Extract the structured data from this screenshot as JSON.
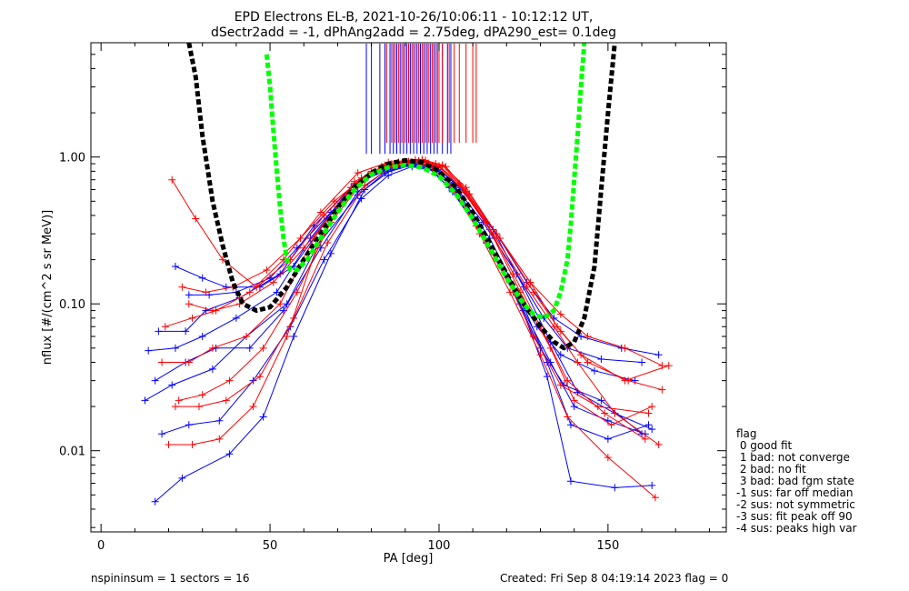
{
  "chart_data": {
    "type": "line",
    "title_line1": "EPD Electrons EL-B, 2021-10-26/10:06:11 - 10:12:12 UT,",
    "title_line2": "dSectr2add = -1, dPhAng2add = 2.75deg, dPA290_est=   0.1deg",
    "xlabel": "PA [deg]",
    "ylabel": "nflux [#/(cm^2 s sr MeV)]",
    "xlim": [
      -3,
      185
    ],
    "ylim": [
      0.0028,
      6.0
    ],
    "log_y": true,
    "x_ticks": [
      0,
      50,
      100,
      150
    ],
    "x_tick_labels": [
      "0",
      "50",
      "100",
      "150"
    ],
    "y_ticks": [
      0.01,
      0.1,
      1.0
    ],
    "y_tick_labels": [
      "0.01",
      "0.10",
      "1.00"
    ],
    "legend_title": "flag",
    "legend_entries": [
      " 0 good fit",
      " 1 bad: not converge",
      " 2 bad: no fit",
      " 3 bad: bad fgm state",
      "-1 sus: far off median",
      "-2 sus: not symmetric",
      "-3 sus: fit peak off 90",
      "-4 sus: peaks high var"
    ],
    "footer_left": "nspininsum =  1  sectors = 16",
    "footer_right": "Created: Fri Sep  8 04:19:14 2023   flag = 0",
    "colors": {
      "series_a": "#0000ff",
      "series_b": "#ff0000",
      "fit_black": "#000000",
      "fit_green": "#00ff00"
    },
    "series": [
      {
        "color": "series_a",
        "x": [
          16,
          24,
          38,
          48,
          57,
          68,
          78,
          86,
          93,
          99,
          105,
          114,
          124,
          132,
          139,
          152,
          163
        ],
        "y": [
          0.0045,
          0.0065,
          0.0095,
          0.017,
          0.06,
          0.22,
          0.6,
          0.82,
          0.9,
          0.85,
          0.6,
          0.26,
          0.1,
          0.032,
          0.0062,
          0.0056,
          0.0058
        ]
      },
      {
        "color": "series_a",
        "x": [
          13,
          21,
          33,
          43,
          55,
          64,
          76,
          84,
          92,
          98,
          104,
          113,
          122,
          130,
          137,
          148,
          160
        ],
        "y": [
          0.022,
          0.028,
          0.036,
          0.06,
          0.1,
          0.25,
          0.55,
          0.78,
          0.88,
          0.82,
          0.58,
          0.29,
          0.12,
          0.05,
          0.028,
          0.022,
          0.013
        ]
      },
      {
        "color": "series_a",
        "x": [
          14,
          22,
          30,
          40,
          52,
          62,
          74,
          83,
          91,
          97,
          103,
          112,
          121,
          129,
          136,
          146,
          158
        ],
        "y": [
          0.048,
          0.05,
          0.06,
          0.08,
          0.12,
          0.28,
          0.62,
          0.8,
          0.9,
          0.84,
          0.62,
          0.33,
          0.14,
          0.07,
          0.045,
          0.035,
          0.03
        ]
      },
      {
        "color": "series_a",
        "x": [
          18,
          26,
          35,
          45,
          56,
          66,
          77,
          85,
          92,
          99,
          106,
          115,
          125,
          133,
          140,
          150,
          161
        ],
        "y": [
          0.013,
          0.015,
          0.016,
          0.03,
          0.07,
          0.2,
          0.52,
          0.75,
          0.86,
          0.8,
          0.55,
          0.24,
          0.09,
          0.04,
          0.02,
          0.016,
          0.013
        ]
      },
      {
        "color": "series_a",
        "x": [
          17,
          25,
          31,
          41,
          53,
          63,
          75,
          84,
          92,
          98,
          104,
          113,
          123,
          131,
          138,
          148,
          160
        ],
        "y": [
          0.065,
          0.065,
          0.09,
          0.11,
          0.16,
          0.34,
          0.66,
          0.82,
          0.92,
          0.86,
          0.66,
          0.36,
          0.16,
          0.08,
          0.05,
          0.042,
          0.04
        ]
      },
      {
        "color": "series_a",
        "x": [
          26,
          32,
          40,
          50,
          58,
          68,
          78,
          86,
          94,
          100,
          108,
          117,
          126,
          134,
          142,
          154,
          165
        ],
        "y": [
          0.115,
          0.115,
          0.12,
          0.15,
          0.24,
          0.42,
          0.7,
          0.84,
          0.9,
          0.82,
          0.58,
          0.3,
          0.14,
          0.08,
          0.06,
          0.05,
          0.045
        ]
      },
      {
        "color": "series_a",
        "x": [
          16,
          25,
          34,
          44,
          54,
          65,
          76,
          84,
          92,
          99,
          105,
          115,
          124,
          132,
          139,
          150,
          162
        ],
        "y": [
          0.03,
          0.04,
          0.05,
          0.05,
          0.09,
          0.24,
          0.58,
          0.8,
          0.9,
          0.84,
          0.6,
          0.28,
          0.11,
          0.04,
          0.015,
          0.012,
          0.015
        ]
      },
      {
        "color": "series_a",
        "x": [
          22,
          30,
          37,
          47,
          57,
          67,
          77,
          85,
          93,
          99,
          106,
          116,
          125,
          133,
          141,
          152,
          163
        ],
        "y": [
          0.18,
          0.15,
          0.13,
          0.13,
          0.18,
          0.38,
          0.68,
          0.84,
          0.93,
          0.86,
          0.62,
          0.32,
          0.13,
          0.055,
          0.025,
          0.018,
          0.014
        ]
      },
      {
        "color": "series_b",
        "x": [
          20,
          27,
          35,
          45,
          55,
          64,
          75,
          84,
          92,
          98,
          104,
          112,
          121,
          130,
          138,
          150,
          164
        ],
        "y": [
          0.011,
          0.011,
          0.012,
          0.02,
          0.06,
          0.25,
          0.68,
          0.88,
          0.92,
          0.85,
          0.62,
          0.3,
          0.12,
          0.045,
          0.017,
          0.009,
          0.0048
        ]
      },
      {
        "color": "series_b",
        "x": [
          21,
          28,
          36,
          46,
          56,
          66,
          77,
          86,
          94,
          100,
          107,
          116,
          126,
          134,
          141,
          152,
          165
        ],
        "y": [
          0.7,
          0.38,
          0.2,
          0.13,
          0.2,
          0.4,
          0.72,
          0.9,
          0.94,
          0.86,
          0.6,
          0.3,
          0.13,
          0.07,
          0.04,
          0.018,
          0.011
        ]
      },
      {
        "color": "series_b",
        "x": [
          18,
          26,
          33,
          43,
          53,
          63,
          74,
          83,
          91,
          97,
          103,
          111,
          120,
          128,
          136,
          147,
          162
        ],
        "y": [
          0.04,
          0.04,
          0.05,
          0.06,
          0.1,
          0.28,
          0.62,
          0.86,
          0.93,
          0.88,
          0.66,
          0.34,
          0.15,
          0.06,
          0.028,
          0.02,
          0.018
        ]
      },
      {
        "color": "series_b",
        "x": [
          23,
          30,
          38,
          48,
          58,
          68,
          79,
          87,
          95,
          101,
          108,
          117,
          127,
          135,
          142,
          155,
          168
        ],
        "y": [
          0.022,
          0.024,
          0.03,
          0.05,
          0.12,
          0.36,
          0.75,
          0.9,
          0.95,
          0.88,
          0.62,
          0.3,
          0.14,
          0.07,
          0.045,
          0.03,
          0.038
        ]
      },
      {
        "color": "series_b",
        "x": [
          19,
          27,
          34,
          44,
          54,
          65,
          76,
          85,
          93,
          99,
          106,
          115,
          124,
          133,
          140,
          151,
          163
        ],
        "y": [
          0.07,
          0.08,
          0.09,
          0.12,
          0.2,
          0.42,
          0.78,
          0.92,
          0.96,
          0.9,
          0.64,
          0.32,
          0.12,
          0.05,
          0.022,
          0.015,
          0.02
        ]
      },
      {
        "color": "series_b",
        "x": [
          24,
          31,
          39,
          49,
          59,
          69,
          80,
          88,
          95,
          101,
          108,
          118,
          128,
          136,
          144,
          156,
          166
        ],
        "y": [
          0.13,
          0.12,
          0.13,
          0.17,
          0.28,
          0.5,
          0.8,
          0.92,
          0.96,
          0.88,
          0.58,
          0.28,
          0.12,
          0.065,
          0.04,
          0.03,
          0.026
        ]
      },
      {
        "color": "series_b",
        "x": [
          22,
          29,
          37,
          47,
          57,
          67,
          78,
          86,
          94,
          100,
          106,
          114,
          122,
          130,
          138,
          149,
          161
        ],
        "y": [
          0.02,
          0.02,
          0.022,
          0.032,
          0.08,
          0.26,
          0.64,
          0.86,
          0.94,
          0.87,
          0.66,
          0.36,
          0.16,
          0.07,
          0.03,
          0.018,
          0.012
        ]
      },
      {
        "color": "series_b",
        "x": [
          26,
          33,
          41,
          51,
          60,
          70,
          80,
          88,
          96,
          102,
          109,
          118,
          127,
          136,
          144,
          155,
          166
        ],
        "y": [
          0.1,
          0.09,
          0.1,
          0.14,
          0.24,
          0.46,
          0.78,
          0.9,
          0.95,
          0.86,
          0.56,
          0.28,
          0.14,
          0.085,
          0.06,
          0.05,
          0.038
        ]
      }
    ],
    "fits": [
      {
        "color": "fit_black",
        "x": [
          26,
          28,
          30,
          33,
          36,
          39,
          42,
          46,
          50,
          55,
          60,
          65,
          70,
          75,
          80,
          85,
          90,
          95,
          100,
          105,
          110,
          115,
          120,
          125,
          130,
          134,
          137,
          140,
          143,
          146,
          148,
          150,
          152
        ],
        "y": [
          6.0,
          3.5,
          1.4,
          0.5,
          0.25,
          0.14,
          0.1,
          0.09,
          0.095,
          0.13,
          0.2,
          0.3,
          0.45,
          0.62,
          0.78,
          0.9,
          0.95,
          0.92,
          0.8,
          0.62,
          0.42,
          0.26,
          0.16,
          0.1,
          0.07,
          0.055,
          0.05,
          0.055,
          0.08,
          0.18,
          0.6,
          2.0,
          6.0
        ]
      },
      {
        "color": "fit_green",
        "x": [
          49,
          50,
          51,
          52,
          53,
          54,
          55,
          56,
          58,
          61,
          65,
          70,
          75,
          80,
          85,
          90,
          95,
          100,
          105,
          110,
          115,
          120,
          125,
          128,
          131,
          134,
          136,
          138,
          139,
          140,
          141,
          142,
          143
        ],
        "y": [
          5.0,
          3.0,
          1.5,
          0.8,
          0.45,
          0.28,
          0.2,
          0.17,
          0.17,
          0.2,
          0.28,
          0.42,
          0.6,
          0.76,
          0.85,
          0.88,
          0.85,
          0.74,
          0.56,
          0.38,
          0.24,
          0.15,
          0.1,
          0.085,
          0.08,
          0.09,
          0.12,
          0.2,
          0.35,
          0.7,
          1.4,
          3.0,
          6.0
        ]
      }
    ],
    "peak_markers": [
      {
        "color": "series_a",
        "x": [
          78.5,
          80,
          82.5,
          84,
          85.5,
          86.5,
          87.5,
          88.5,
          89.5,
          90.5,
          91.5,
          92.5,
          93.5,
          94.5,
          95.5,
          96.5,
          97.5,
          98.5,
          99.5,
          101,
          102.5,
          103.5
        ]
      },
      {
        "color": "series_b",
        "x": [
          84.5,
          86,
          87,
          88,
          89,
          90,
          91,
          92,
          93,
          94,
          95,
          96,
          97,
          98,
          99,
          100,
          101,
          103,
          104.5,
          106,
          108,
          110,
          111
        ]
      }
    ]
  }
}
